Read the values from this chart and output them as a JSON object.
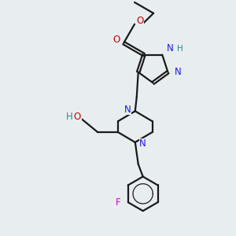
{
  "bg_color": "#e8edf0",
  "bond_color": "#1a1a1a",
  "N_color": "#1a1aee",
  "O_color": "#cc0000",
  "F_color": "#cc00cc",
  "H_color": "#2a8888",
  "bond_lw": 1.6,
  "dbo": 0.018,
  "figsize": [
    3.0,
    3.0
  ],
  "dpi": 100,
  "xlim": [
    0,
    3.0
  ],
  "ylim": [
    0,
    3.0
  ]
}
